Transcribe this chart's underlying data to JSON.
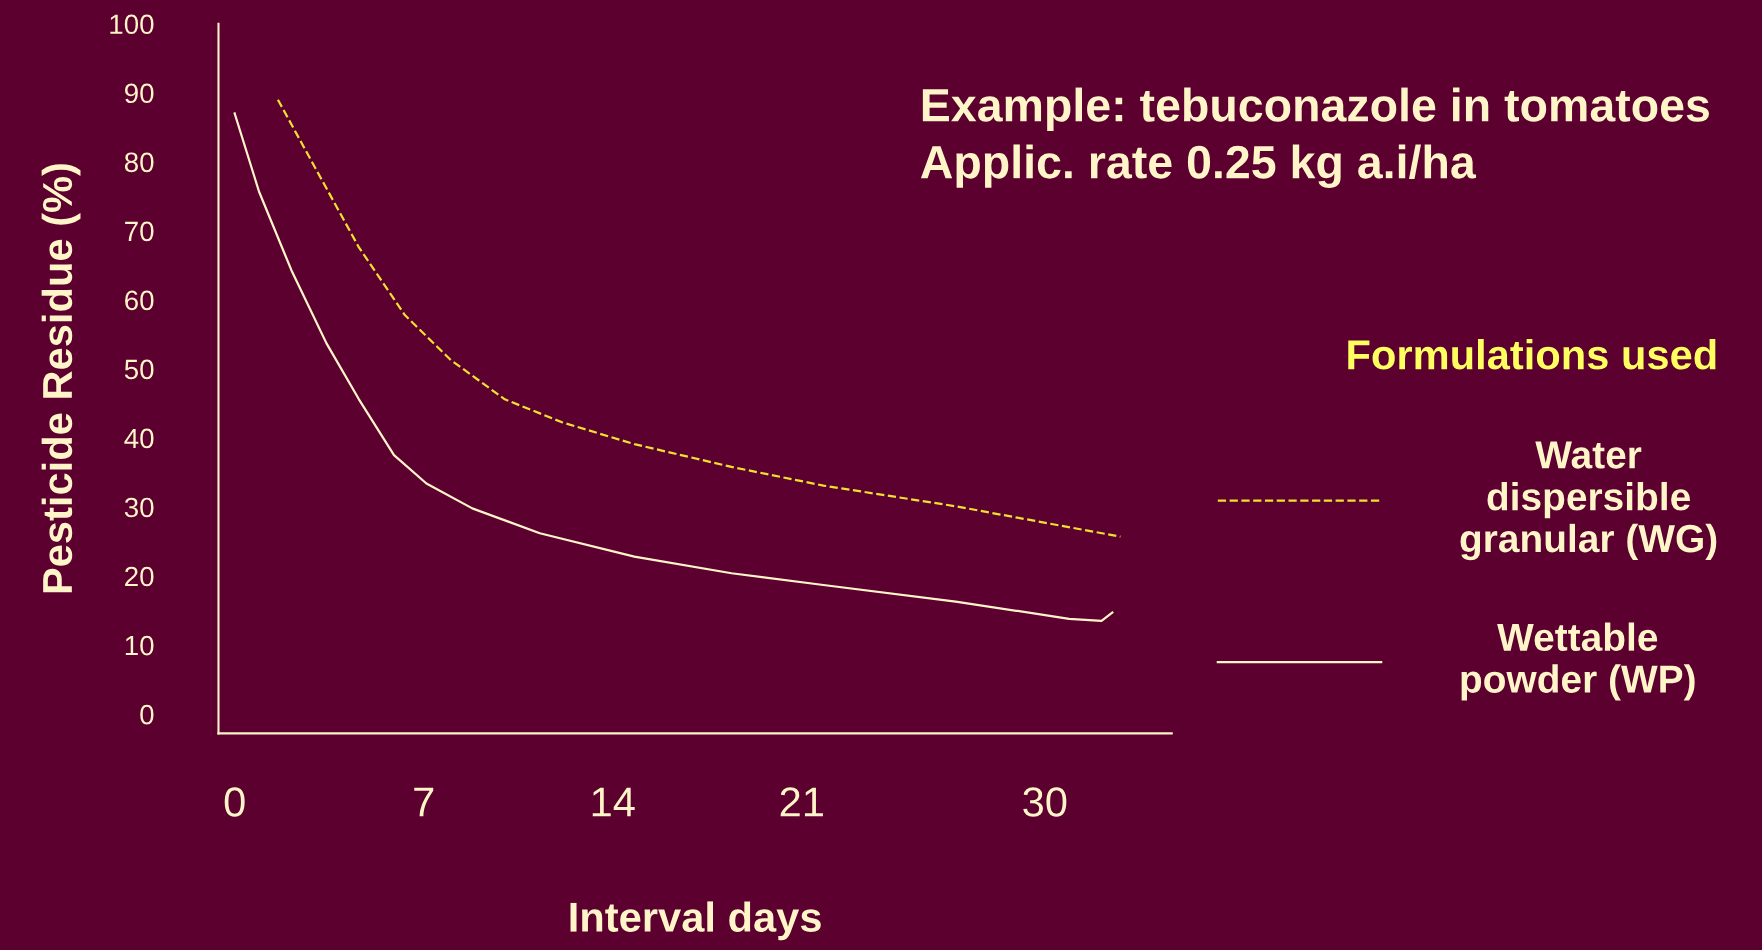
{
  "chart_data": {
    "type": "line",
    "title": "Example: tebuconazole in tomatoes",
    "subtitle": "Applic. rate 0.25 kg a.i/ha",
    "xlabel": "Interval days",
    "ylabel": "Pesticide Residue (%)",
    "legend_title": "Formulations used",
    "legend": "right",
    "grid": false,
    "xlim": [
      -0.6,
      34.7
    ],
    "ylim": [
      -2.8,
      100
    ],
    "xticks": [
      0,
      7,
      14,
      21,
      30
    ],
    "yticks": [
      0,
      10,
      20,
      30,
      40,
      50,
      60,
      70,
      80,
      90,
      100
    ],
    "series": [
      {
        "name": "Water\ndispersible\ngranular (WG)",
        "color": "#f0e030",
        "line_style": "dashed",
        "x": [
          1.6,
          3.0,
          4.6,
          6.3,
          8.0,
          10.0,
          12.1,
          14.8,
          18.4,
          21.8,
          26.7,
          32.8
        ],
        "values": [
          89,
          79,
          67.6,
          57.8,
          51.3,
          45.6,
          42.3,
          39.1,
          35.8,
          33.1,
          30.1,
          25.7
        ]
      },
      {
        "name": "Wettable\npowder (WP)",
        "color": "#fff5c8",
        "line_style": "solid",
        "x": [
          0,
          0.9,
          2.1,
          3.4,
          4.6,
          5.9,
          7.1,
          8.8,
          11.3,
          14.8,
          18.4,
          21.8,
          26.7,
          30.9,
          32.1,
          32.5
        ],
        "values": [
          87,
          75.7,
          64.3,
          53.7,
          45.6,
          37.5,
          33.4,
          29.8,
          26.2,
          22.8,
          20.4,
          18.7,
          16.3,
          13.8,
          13.5,
          14.7
        ]
      }
    ]
  }
}
